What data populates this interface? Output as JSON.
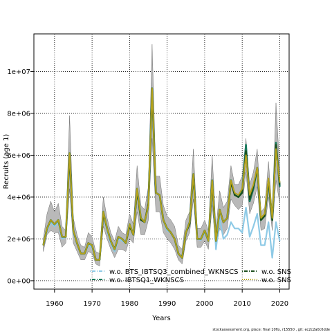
{
  "chart_data": {
    "type": "line",
    "xlabel": "Years",
    "ylabel": "Recruits (age 1)",
    "xlim": [
      1954.5,
      2022.5
    ],
    "ylim": [
      -400000,
      11800000
    ],
    "x_ticks": [
      1960,
      1970,
      1980,
      1990,
      2000,
      2010,
      2020
    ],
    "x_tick_labels": [
      "1960",
      "1970",
      "1980",
      "1990",
      "2000",
      "2010",
      "2020"
    ],
    "y_ticks": [
      0,
      2000000,
      4000000,
      6000000,
      8000000,
      10000000
    ],
    "y_tick_labels": [
      "0e+00",
      "2e+06",
      "4e+06",
      "6e+06",
      "8e+06",
      "1e+07"
    ],
    "grid": true,
    "legend_position": "bottom",
    "years": [
      1957,
      1958,
      1959,
      1960,
      1961,
      1962,
      1963,
      1964,
      1965,
      1966,
      1967,
      1968,
      1969,
      1970,
      1971,
      1972,
      1973,
      1974,
      1975,
      1976,
      1977,
      1978,
      1979,
      1980,
      1981,
      1982,
      1983,
      1984,
      1985,
      1986,
      1987,
      1988,
      1989,
      1990,
      1991,
      1992,
      1993,
      1994,
      1995,
      1996,
      1997,
      1998,
      1999,
      2000,
      2001,
      2002,
      2003,
      2004,
      2005,
      2006,
      2007,
      2008,
      2009,
      2010,
      2011,
      2012,
      2013,
      2014,
      2015,
      2016,
      2017,
      2018,
      2019,
      2020
    ],
    "band": {
      "color": "#b9b9b9",
      "upper": [
        2000000,
        3200000,
        3800000,
        3300000,
        3700000,
        2600000,
        2400000,
        7900000,
        3000000,
        2200000,
        1700000,
        1600000,
        2300000,
        2100000,
        1400000,
        1300000,
        4000000,
        3000000,
        2300000,
        1900000,
        2600000,
        2300000,
        2200000,
        3200000,
        2700000,
        5500000,
        3600000,
        3400000,
        4500000,
        11300000,
        5000000,
        5000000,
        3600000,
        3100000,
        2900000,
        2600000,
        1700000,
        1500000,
        2900000,
        3300000,
        6300000,
        2500000,
        2500000,
        2900000,
        2400000,
        6000000,
        2500000,
        4300000,
        3500000,
        3800000,
        5500000,
        4600000,
        4600000,
        5000000,
        6800000,
        4600000,
        5200000,
        6300000,
        3300000,
        3500000,
        5700000,
        3200000,
        8500000,
        5400000
      ],
      "lower": [
        1400000,
        2200000,
        2400000,
        2300000,
        2300000,
        1600000,
        1800000,
        4400000,
        1800000,
        1400000,
        1000000,
        1000000,
        1400000,
        1300000,
        800000,
        700000,
        2600000,
        2000000,
        1500000,
        1100000,
        1500000,
        1500000,
        1400000,
        2000000,
        1800000,
        3300000,
        2200000,
        2200000,
        2900000,
        6800000,
        3300000,
        3300000,
        2300000,
        2000000,
        1800000,
        1500000,
        1000000,
        800000,
        1900000,
        2300000,
        3900000,
        1600000,
        1600000,
        1900000,
        1500000,
        3600000,
        1500000,
        2500000,
        2200000,
        2500000,
        3900000,
        3600000,
        3400000,
        3600000,
        5200000,
        3200000,
        3700000,
        4500000,
        2400000,
        2500000,
        4000000,
        2400000,
        4800000,
        3700000
      ]
    },
    "series": [
      {
        "name": "w.o. BTS_IBTSQ3_combined_WKNSCS",
        "color": "#8ecae6",
        "dash": "dotdash",
        "values": [
          1700000,
          2400000,
          2800000,
          2600000,
          2800000,
          2000000,
          2100000,
          6000000,
          2300000,
          1800000,
          1300000,
          1300000,
          1700000,
          1600000,
          1000000,
          1000000,
          3200000,
          2400000,
          1800000,
          1400000,
          2000000,
          1900000,
          1800000,
          2600000,
          2200000,
          4300000,
          2900000,
          2800000,
          3600000,
          9100000,
          4200000,
          4100000,
          2900000,
          2400000,
          2300000,
          2000000,
          1300000,
          1100000,
          2300000,
          2700000,
          5100000,
          2000000,
          1950000,
          2300000,
          1900000,
          4800000,
          1500000,
          3000000,
          2000000,
          2200000,
          2800000,
          2500000,
          2500000,
          2300000,
          3500000,
          2100000,
          2600000,
          3200000,
          1700000,
          1700000,
          2800000,
          1100000,
          2800000,
          1900000
        ]
      },
      {
        "name": "w.o. IBTSQ1_WKNSCS",
        "color": "#1a7a5e",
        "dash": "dotdash",
        "values": [
          1700000,
          2500000,
          2900000,
          2700000,
          2900000,
          2100000,
          2100000,
          6100000,
          2400000,
          1800000,
          1300000,
          1300000,
          1800000,
          1700000,
          1000000,
          1000000,
          3300000,
          2500000,
          1900000,
          1500000,
          2100000,
          2000000,
          1800000,
          2700000,
          2200000,
          4400000,
          3000000,
          2800000,
          3600000,
          9200000,
          4200000,
          4100000,
          2900000,
          2500000,
          2300000,
          2000000,
          1300000,
          1100000,
          2300000,
          2800000,
          5100000,
          2000000,
          2000000,
          2400000,
          1900000,
          4800000,
          1900000,
          3400000,
          2800000,
          3000000,
          4800000,
          4100000,
          4000000,
          4300000,
          6500000,
          3800000,
          4400000,
          5400000,
          2900000,
          3100000,
          4800000,
          2900000,
          6600000,
          4500000
        ]
      },
      {
        "name": "w.o. SNS",
        "color": "#1b4d1b",
        "dash": "dotdash",
        "values": [
          1700000,
          2500000,
          2900000,
          2700000,
          2900000,
          2100000,
          2100000,
          6000000,
          2400000,
          1800000,
          1300000,
          1300000,
          1800000,
          1700000,
          1000000,
          1000000,
          3200000,
          2500000,
          1900000,
          1500000,
          2100000,
          2000000,
          1800000,
          2600000,
          2200000,
          4300000,
          2900000,
          2800000,
          3700000,
          9100000,
          4200000,
          4100000,
          2900000,
          2500000,
          2300000,
          2000000,
          1300000,
          1100000,
          2300000,
          2700000,
          5100000,
          2000000,
          2000000,
          2400000,
          1900000,
          4700000,
          1900000,
          3400000,
          2800000,
          3000000,
          4700000,
          4100000,
          4000000,
          4200000,
          6200000,
          3900000,
          4500000,
          5400000,
          2900000,
          3100000,
          4800000,
          2900000,
          6500000,
          4600000
        ]
      },
      {
        "name": "w.o. SNS",
        "color": "#b5a21c",
        "dash": "dotted",
        "values": [
          1700000,
          2500000,
          2900000,
          2700000,
          2900000,
          2100000,
          2100000,
          6100000,
          2400000,
          1800000,
          1300000,
          1300000,
          1800000,
          1700000,
          1000000,
          1000000,
          3300000,
          2500000,
          1900000,
          1500000,
          2100000,
          2000000,
          1800000,
          2700000,
          2200000,
          4400000,
          3000000,
          2800000,
          3600000,
          9200000,
          4200000,
          4100000,
          2900000,
          2500000,
          2300000,
          2000000,
          1300000,
          1100000,
          2300000,
          2800000,
          5100000,
          2000000,
          2000000,
          2400000,
          1900000,
          4800000,
          1900000,
          3400000,
          2800000,
          3000000,
          4800000,
          4200000,
          4100000,
          4400000,
          6000000,
          4100000,
          4600000,
          5400000,
          3000000,
          3200000,
          4900000,
          3000000,
          6300000,
          4700000
        ]
      }
    ]
  },
  "footer_text": "stockassessment.org, place: final 10fix, r15550 , git: ec2c2a0c6dde"
}
